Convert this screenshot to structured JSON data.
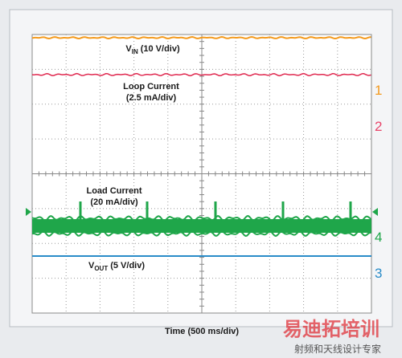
{
  "traces": [
    {
      "channel": "1",
      "label_main": "V",
      "label_sub": "IN",
      "label_rest": "(10 V/div)"
    },
    {
      "channel": "2",
      "label_lines": [
        "Loop Current",
        "(2.5 mA/div)"
      ]
    },
    {
      "channel": "4",
      "label_lines": [
        "Load Current",
        "(20 mA/div)"
      ]
    },
    {
      "channel": "3",
      "label_main": "V",
      "label_sub": "OUT",
      "label_rest": "(5 V/div)"
    }
  ],
  "x_axis_label": "Time (500 ms/div)",
  "watermark": {
    "title": "易迪拓培训",
    "subtitle": "射频和天线设计专家"
  }
}
